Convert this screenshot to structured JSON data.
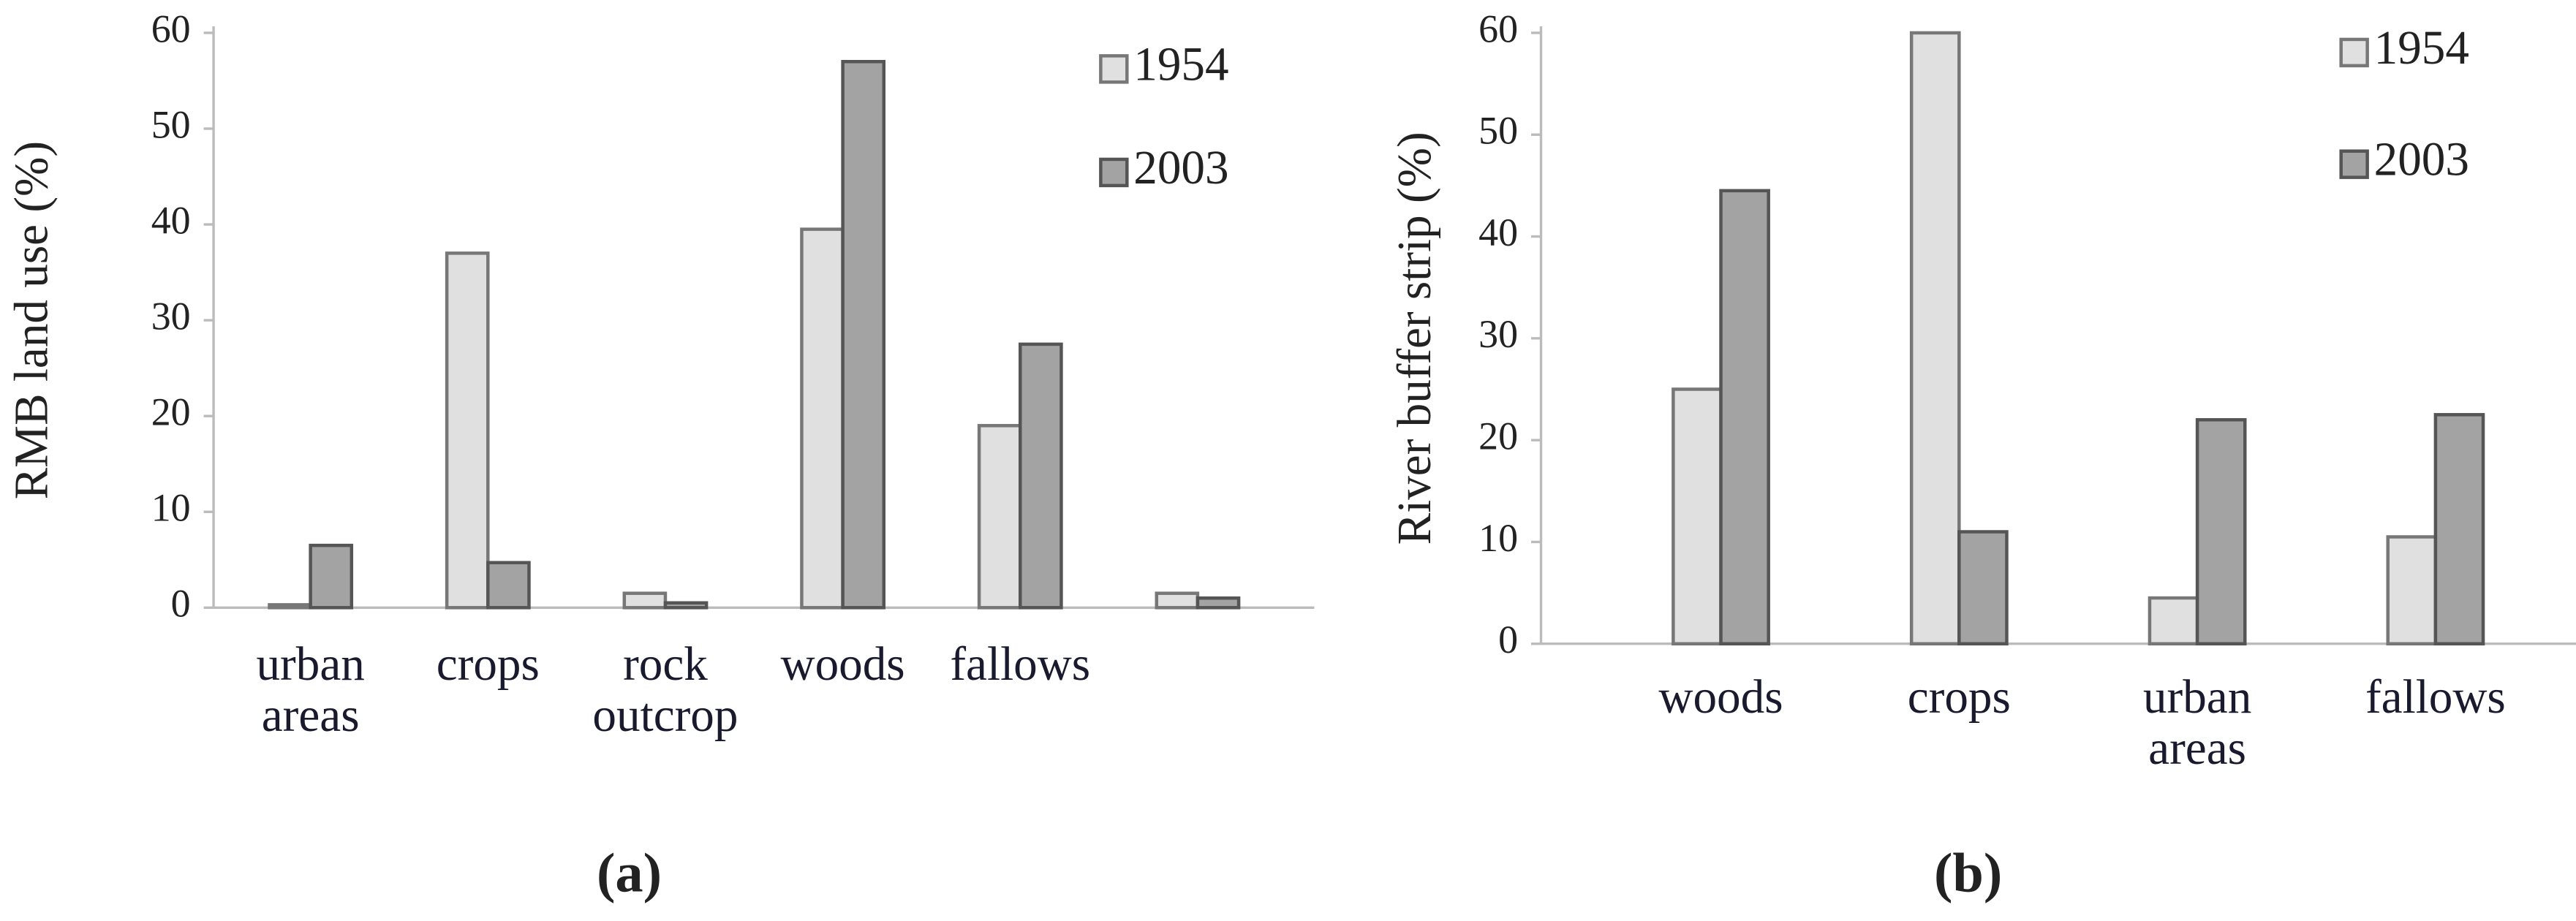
{
  "chart_data": [
    {
      "type": "bar",
      "caption": "(a)",
      "ylabel": "RMB land use (%)",
      "categories": [
        "urban areas",
        "crops",
        "rock outcrop",
        "woods",
        "fallows",
        null
      ],
      "series": [
        {
          "name": "1954",
          "color": "#e0e0e0",
          "values": [
            0.3,
            37,
            1.5,
            39.5,
            19,
            1.5
          ]
        },
        {
          "name": "2003",
          "color": "#a3a3a3",
          "values": [
            6.5,
            4.7,
            0.5,
            57,
            27.5,
            1
          ]
        }
      ],
      "ylim": [
        0,
        60
      ],
      "yticks": [
        0,
        10,
        20,
        30,
        40,
        50,
        60
      ]
    },
    {
      "type": "bar",
      "caption": "(b)",
      "ylabel": "River buffer strip (%)",
      "categories": [
        "woods",
        "crops",
        "urban areas",
        "fallows"
      ],
      "series": [
        {
          "name": "1954",
          "color": "#e0e0e0",
          "values": [
            25,
            60,
            4.5,
            10.5
          ]
        },
        {
          "name": "2003",
          "color": "#a3a3a3",
          "values": [
            44.5,
            11,
            22,
            22.5
          ]
        }
      ],
      "ylim": [
        0,
        60
      ],
      "yticks": [
        0,
        10,
        20,
        30,
        40,
        50,
        60
      ]
    }
  ]
}
